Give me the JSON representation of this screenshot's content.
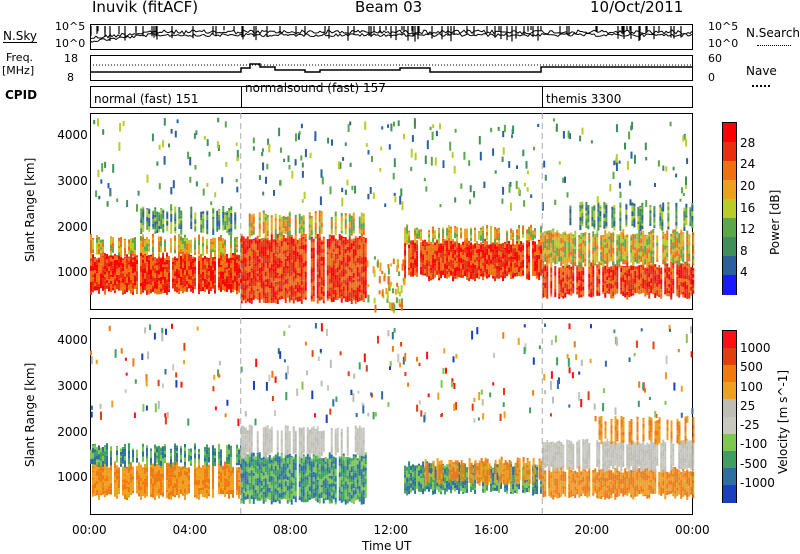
{
  "header": {
    "station": "Inuvik (fitACF)",
    "beam": "Beam 03",
    "date": "10/Oct/2011"
  },
  "left_labels": {
    "nsky": "N.Sky",
    "freq_line1": "Freq.",
    "freq_line2": "[MHz]",
    "cpid": "CPID"
  },
  "right_labels": {
    "nsearch": "N.Search",
    "nave": "Nave"
  },
  "noise_axis": {
    "top": "10^5",
    "bottom": "10^0",
    "right_top": "10^5",
    "right_bottom": "10^0"
  },
  "freq_axis": {
    "top": "18",
    "bottom": "8",
    "right_top": "60",
    "right_bottom": "0"
  },
  "cpid_segments": [
    {
      "label": "normal (fast) 151",
      "start_hour": 0,
      "end_hour": 6
    },
    {
      "label": "normalsound (fast) 157",
      "start_hour": 6,
      "end_hour": 18
    },
    {
      "label": "themis 3300",
      "start_hour": 18,
      "end_hour": 24
    }
  ],
  "colors": {
    "power_scale": [
      "#1a1aff",
      "#2a5fa0",
      "#3f8f5a",
      "#5aa84a",
      "#b8cc2a",
      "#f0a020",
      "#f07010",
      "#e83010",
      "#ff0000"
    ],
    "velocity_scale": [
      "#1a3fbf",
      "#2f6fa0",
      "#3f9f60",
      "#7ec850",
      "#c8c8c0",
      "#bdbdb5",
      "#f0a020",
      "#f07a10",
      "#e04010",
      "#ff1010"
    ]
  },
  "chart_data": [
    {
      "type": "heatmap",
      "panel": "power",
      "ylabel": "Slant Range [km]",
      "y_ticks": [
        "1000",
        "2000",
        "3000",
        "4000"
      ],
      "ylim": [
        200,
        4500
      ],
      "colorbar_label": "Power [dB]",
      "colorbar_ticks": [
        "28",
        "24",
        "20",
        "16",
        "12",
        "8",
        "4"
      ],
      "colorbar_range": [
        0,
        32
      ]
    },
    {
      "type": "heatmap",
      "panel": "velocity",
      "ylabel": "Slant Range [km]",
      "y_ticks": [
        "1000",
        "2000",
        "3000",
        "4000"
      ],
      "ylim": [
        200,
        4500
      ],
      "colorbar_label": "Velocity [m s^-1]",
      "colorbar_ticks": [
        "1000",
        "500",
        "100",
        "25",
        "-25",
        "-100",
        "-500",
        "-1000"
      ]
    }
  ],
  "x_axis": {
    "label": "Time UT",
    "ticks": [
      "00:00",
      "04:00",
      "08:00",
      "12:00",
      "16:00",
      "20:00",
      "00:00"
    ]
  }
}
